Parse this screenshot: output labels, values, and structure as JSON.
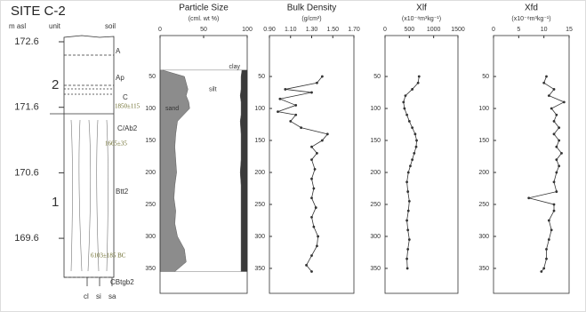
{
  "column": {
    "title": "SITE C-2",
    "headers": [
      "m asl",
      "unit",
      "soil"
    ],
    "elevation_ticks": [
      172.6,
      171.6,
      170.6,
      169.6
    ],
    "elevation_lim": [
      172.695,
      168.76
    ],
    "units": [
      "2",
      "1"
    ],
    "horizons": [
      "A",
      "Ap",
      "C",
      "C/Ab2",
      "Btt2",
      "CBtgb2"
    ],
    "dates": [
      "1850±115",
      "1665±35",
      "6103±185 BC"
    ],
    "texture": [
      "cl",
      "si",
      "sa"
    ]
  },
  "chart_data": [
    {
      "type": "area",
      "title": "Particle Size",
      "subtitle": "(cml. wt %)",
      "depth": [
        40,
        50,
        60,
        70,
        80,
        90,
        100,
        110,
        120,
        140,
        160,
        180,
        200,
        220,
        240,
        260,
        280,
        300,
        320,
        340,
        355
      ],
      "series": [
        {
          "name": "sand",
          "color": "#8c8c8c",
          "values": [
            3,
            28,
            30,
            32,
            30,
            33,
            34,
            27,
            20,
            18,
            17,
            18,
            19,
            17,
            16,
            18,
            17,
            20,
            28,
            30,
            17
          ]
        },
        {
          "name": "silt",
          "color": "#ffffff",
          "values": [
            91,
            65,
            63,
            61,
            62,
            60,
            59,
            66,
            72,
            75,
            76,
            75,
            73,
            76,
            77,
            75,
            76,
            73,
            65,
            63,
            76
          ]
        },
        {
          "name": "clay",
          "color": "#3a3a3a",
          "values": [
            6,
            7,
            7,
            7,
            8,
            7,
            7,
            7,
            8,
            7,
            7,
            7,
            8,
            7,
            7,
            7,
            7,
            7,
            7,
            7,
            7
          ]
        }
      ],
      "xlim": [
        0,
        100
      ],
      "xticks": [
        0,
        50,
        100
      ],
      "ylim": [
        -14,
        389
      ],
      "yticks": [
        50,
        100,
        150,
        200,
        250,
        300,
        350
      ]
    },
    {
      "type": "line",
      "title": "Bulk Density",
      "subtitle": "(g/cm³)",
      "depth": [
        50,
        60,
        70,
        75,
        85,
        95,
        105,
        110,
        120,
        130,
        140,
        150,
        160,
        170,
        180,
        195,
        210,
        225,
        240,
        255,
        270,
        285,
        300,
        315,
        330,
        345,
        355
      ],
      "values": [
        1.4,
        1.35,
        1.05,
        1.3,
        1.0,
        1.15,
        0.98,
        1.15,
        1.1,
        1.2,
        1.45,
        1.4,
        1.3,
        1.35,
        1.3,
        1.33,
        1.3,
        1.32,
        1.3,
        1.34,
        1.3,
        1.32,
        1.36,
        1.35,
        1.3,
        1.25,
        1.3
      ],
      "color": "#333333",
      "xlim": [
        0.9,
        1.7
      ],
      "xticks": [
        {
          "value": 0.9,
          "label": "0.90"
        },
        {
          "value": 1.1,
          "label": "1.10"
        },
        {
          "value": 1.3,
          "label": "1.30"
        },
        {
          "value": 1.5,
          "label": "1.50"
        },
        {
          "value": 1.7,
          "label": "1.70"
        }
      ],
      "ylim": [
        -14,
        389
      ],
      "yticks": [
        50,
        100,
        150,
        200,
        250,
        300,
        350
      ]
    },
    {
      "type": "line",
      "title": "Xlf",
      "subtitle": "(x10⁻⁸m³kg⁻¹)",
      "depth": [
        50,
        60,
        70,
        80,
        90,
        100,
        110,
        120,
        130,
        140,
        150,
        160,
        170,
        180,
        190,
        200,
        215,
        230,
        245,
        260,
        275,
        290,
        305,
        320,
        335,
        350
      ],
      "values": [
        700,
        680,
        560,
        420,
        380,
        400,
        450,
        500,
        560,
        620,
        650,
        640,
        600,
        560,
        520,
        480,
        450,
        470,
        500,
        480,
        450,
        470,
        500,
        470,
        450,
        460
      ],
      "color": "#333333",
      "xlim": [
        0,
        1500
      ],
      "xticks": [
        0,
        500,
        1000,
        1500
      ],
      "ylim": [
        -14,
        389
      ],
      "yticks": [
        50,
        100,
        150,
        200,
        250,
        300,
        350
      ]
    },
    {
      "type": "line",
      "title": "Xfd",
      "subtitle": "(x10⁻⁸m³kg⁻¹)",
      "depth": [
        50,
        60,
        70,
        80,
        90,
        100,
        110,
        120,
        130,
        140,
        150,
        160,
        170,
        180,
        190,
        200,
        215,
        230,
        240,
        250,
        260,
        275,
        290,
        305,
        320,
        335,
        350,
        355
      ],
      "values": [
        10.5,
        10,
        12,
        11,
        14,
        11.5,
        12.5,
        12,
        13,
        12,
        13,
        12.5,
        13.5,
        12.5,
        13,
        12.5,
        12,
        12.5,
        7,
        12,
        12,
        11,
        11.5,
        11,
        10.5,
        10.5,
        10,
        9.5
      ],
      "color": "#333333",
      "xlim": [
        0,
        15
      ],
      "xticks": [
        0,
        5,
        10,
        15
      ],
      "ylim": [
        -14,
        389
      ],
      "yticks": [
        50,
        100,
        150,
        200,
        250,
        300,
        350
      ]
    }
  ]
}
